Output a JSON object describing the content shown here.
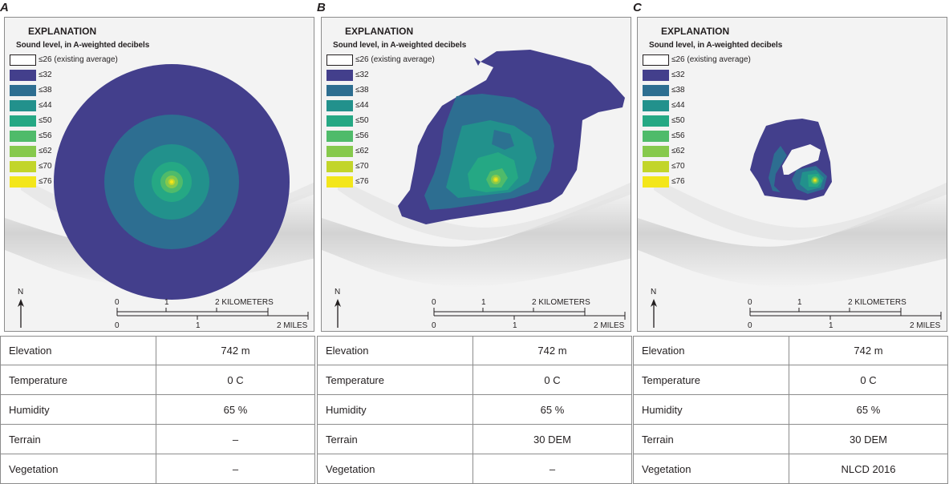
{
  "panels": [
    {
      "letter": "A",
      "explanation": {
        "title": "EXPLANATION",
        "subtitle": "Sound level, in A-weighted decibels",
        "items": [
          {
            "label": "≤26 (existing average)",
            "color": "#ffffff"
          },
          {
            "label": "≤32",
            "color": "#433f8c"
          },
          {
            "label": "≤38",
            "color": "#2d6e91"
          },
          {
            "label": "≤44",
            "color": "#22918c"
          },
          {
            "label": "≤50",
            "color": "#25a884"
          },
          {
            "label": "≤56",
            "color": "#4fbb6a"
          },
          {
            "label": "≤62",
            "color": "#86c94c"
          },
          {
            "label": "≤70",
            "color": "#c2d52a"
          },
          {
            "label": "≤76",
            "color": "#f3e61a"
          }
        ]
      },
      "north": "N",
      "scale": {
        "km_ticks": [
          "0",
          "1",
          "2 KILOMETERS"
        ],
        "mi_ticks": [
          "0",
          "1",
          "2 MILES"
        ]
      },
      "params": [
        {
          "label": "Elevation",
          "value": "742 m"
        },
        {
          "label": "Temperature",
          "value": "0 C"
        },
        {
          "label": "Humidity",
          "value": "65 %"
        },
        {
          "label": "Terrain",
          "value": "–"
        },
        {
          "label": "Vegetation",
          "value": "–"
        }
      ]
    },
    {
      "letter": "B",
      "explanation": {
        "title": "EXPLANATION",
        "subtitle": "Sound level, in A-weighted decibels",
        "items": [
          {
            "label": "≤26 (existing average)",
            "color": "#ffffff"
          },
          {
            "label": "≤32",
            "color": "#433f8c"
          },
          {
            "label": "≤38",
            "color": "#2d6e91"
          },
          {
            "label": "≤44",
            "color": "#22918c"
          },
          {
            "label": "≤50",
            "color": "#25a884"
          },
          {
            "label": "≤56",
            "color": "#4fbb6a"
          },
          {
            "label": "≤62",
            "color": "#86c94c"
          },
          {
            "label": "≤70",
            "color": "#c2d52a"
          },
          {
            "label": "≤76",
            "color": "#f3e61a"
          }
        ]
      },
      "north": "N",
      "scale": {
        "km_ticks": [
          "0",
          "1",
          "2 KILOMETERS"
        ],
        "mi_ticks": [
          "0",
          "1",
          "2 MILES"
        ]
      },
      "params": [
        {
          "label": "Elevation",
          "value": "742 m"
        },
        {
          "label": "Temperature",
          "value": "0 C"
        },
        {
          "label": "Humidity",
          "value": "65 %"
        },
        {
          "label": "Terrain",
          "value": "30 DEM"
        },
        {
          "label": "Vegetation",
          "value": "–"
        }
      ]
    },
    {
      "letter": "C",
      "explanation": {
        "title": "EXPLANATION",
        "subtitle": "Sound level, in A-weighted decibels",
        "items": [
          {
            "label": "≤26 (existing average)",
            "color": "#ffffff"
          },
          {
            "label": "≤32",
            "color": "#433f8c"
          },
          {
            "label": "≤38",
            "color": "#2d6e91"
          },
          {
            "label": "≤44",
            "color": "#22918c"
          },
          {
            "label": "≤50",
            "color": "#25a884"
          },
          {
            "label": "≤56",
            "color": "#4fbb6a"
          },
          {
            "label": "≤62",
            "color": "#86c94c"
          },
          {
            "label": "≤70",
            "color": "#c2d52a"
          },
          {
            "label": "≤76",
            "color": "#f3e61a"
          }
        ]
      },
      "north": "N",
      "scale": {
        "km_ticks": [
          "0",
          "1",
          "2 KILOMETERS"
        ],
        "mi_ticks": [
          "0",
          "1",
          "2 MILES"
        ]
      },
      "params": [
        {
          "label": "Elevation",
          "value": "742 m"
        },
        {
          "label": "Temperature",
          "value": "0 C"
        },
        {
          "label": "Humidity",
          "value": "65 %"
        },
        {
          "label": "Terrain",
          "value": "30 DEM"
        },
        {
          "label": "Vegetation",
          "value": "NLCD 2016"
        }
      ]
    }
  ]
}
